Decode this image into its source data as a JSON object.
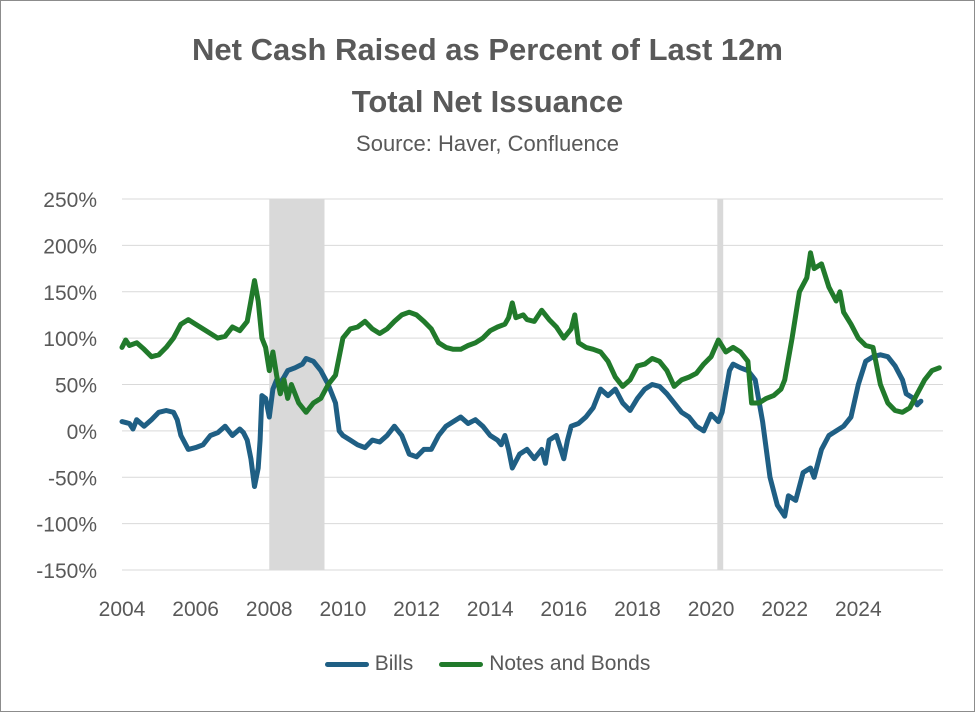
{
  "chart_data": {
    "type": "line",
    "title_line1": "Net Cash Raised as Percent of Last 12m",
    "title_line2": "Total Net Issuance",
    "subtitle": "Source: Haver, Confluence",
    "ylim": [
      -150,
      250
    ],
    "xlim": [
      2004.0,
      2025.0
    ],
    "y_ticks": [
      -150,
      -100,
      -50,
      0,
      50,
      100,
      150,
      200,
      250
    ],
    "y_tick_labels": [
      "-150%",
      "-100%",
      "-50%",
      "0%",
      "50%",
      "100%",
      "150%",
      "200%",
      "250%"
    ],
    "x_ticks": [
      2004,
      2006,
      2008,
      2010,
      2012,
      2014,
      2016,
      2018,
      2020,
      2022,
      2024
    ],
    "x_tick_labels": [
      "2004",
      "2006",
      "2008",
      "2010",
      "2012",
      "2014",
      "2016",
      "2018",
      "2020",
      "2022",
      "2024"
    ],
    "grid": true,
    "legend_position": "bottom",
    "recession_shading": [
      [
        2008.0,
        2009.5
      ],
      [
        2020.17,
        2020.33
      ]
    ],
    "series": [
      {
        "name": "Bills",
        "color": "#1f5f84",
        "points": [
          [
            2004.0,
            10
          ],
          [
            2004.2,
            8
          ],
          [
            2004.3,
            2
          ],
          [
            2004.4,
            12
          ],
          [
            2004.6,
            5
          ],
          [
            2004.8,
            12
          ],
          [
            2005.0,
            20
          ],
          [
            2005.2,
            22
          ],
          [
            2005.4,
            20
          ],
          [
            2005.5,
            12
          ],
          [
            2005.6,
            -5
          ],
          [
            2005.8,
            -20
          ],
          [
            2006.0,
            -18
          ],
          [
            2006.2,
            -15
          ],
          [
            2006.4,
            -5
          ],
          [
            2006.6,
            -2
          ],
          [
            2006.8,
            5
          ],
          [
            2007.0,
            -5
          ],
          [
            2007.2,
            2
          ],
          [
            2007.3,
            -2
          ],
          [
            2007.4,
            -10
          ],
          [
            2007.5,
            -30
          ],
          [
            2007.6,
            -60
          ],
          [
            2007.7,
            -40
          ],
          [
            2007.75,
            -10
          ],
          [
            2007.8,
            38
          ],
          [
            2007.9,
            35
          ],
          [
            2008.0,
            15
          ],
          [
            2008.1,
            45
          ],
          [
            2008.2,
            55
          ],
          [
            2008.3,
            52
          ],
          [
            2008.4,
            58
          ],
          [
            2008.5,
            65
          ],
          [
            2008.7,
            68
          ],
          [
            2008.9,
            72
          ],
          [
            2009.0,
            78
          ],
          [
            2009.2,
            75
          ],
          [
            2009.4,
            65
          ],
          [
            2009.6,
            50
          ],
          [
            2009.8,
            30
          ],
          [
            2009.9,
            0
          ],
          [
            2010.0,
            -5
          ],
          [
            2010.2,
            -10
          ],
          [
            2010.4,
            -15
          ],
          [
            2010.6,
            -18
          ],
          [
            2010.8,
            -10
          ],
          [
            2011.0,
            -12
          ],
          [
            2011.2,
            -5
          ],
          [
            2011.4,
            5
          ],
          [
            2011.6,
            -5
          ],
          [
            2011.8,
            -25
          ],
          [
            2012.0,
            -28
          ],
          [
            2012.2,
            -20
          ],
          [
            2012.4,
            -20
          ],
          [
            2012.6,
            -5
          ],
          [
            2012.8,
            5
          ],
          [
            2013.0,
            10
          ],
          [
            2013.2,
            15
          ],
          [
            2013.4,
            8
          ],
          [
            2013.6,
            12
          ],
          [
            2013.8,
            5
          ],
          [
            2014.0,
            -5
          ],
          [
            2014.2,
            -10
          ],
          [
            2014.3,
            -15
          ],
          [
            2014.4,
            -5
          ],
          [
            2014.5,
            -20
          ],
          [
            2014.6,
            -40
          ],
          [
            2014.8,
            -25
          ],
          [
            2015.0,
            -20
          ],
          [
            2015.2,
            -30
          ],
          [
            2015.4,
            -20
          ],
          [
            2015.5,
            -35
          ],
          [
            2015.6,
            -10
          ],
          [
            2015.8,
            -5
          ],
          [
            2016.0,
            -30
          ],
          [
            2016.1,
            -10
          ],
          [
            2016.2,
            5
          ],
          [
            2016.4,
            8
          ],
          [
            2016.6,
            15
          ],
          [
            2016.8,
            25
          ],
          [
            2017.0,
            45
          ],
          [
            2017.2,
            38
          ],
          [
            2017.4,
            45
          ],
          [
            2017.6,
            30
          ],
          [
            2017.8,
            22
          ],
          [
            2018.0,
            35
          ],
          [
            2018.2,
            45
          ],
          [
            2018.4,
            50
          ],
          [
            2018.6,
            48
          ],
          [
            2018.8,
            40
          ],
          [
            2019.0,
            30
          ],
          [
            2019.2,
            20
          ],
          [
            2019.4,
            15
          ],
          [
            2019.6,
            5
          ],
          [
            2019.8,
            0
          ],
          [
            2020.0,
            18
          ],
          [
            2020.2,
            10
          ],
          [
            2020.3,
            20
          ],
          [
            2020.5,
            65
          ],
          [
            2020.6,
            72
          ],
          [
            2020.8,
            68
          ],
          [
            2021.0,
            65
          ],
          [
            2021.2,
            55
          ],
          [
            2021.4,
            10
          ],
          [
            2021.6,
            -50
          ],
          [
            2021.8,
            -80
          ],
          [
            2022.0,
            -92
          ],
          [
            2022.1,
            -70
          ],
          [
            2022.3,
            -75
          ],
          [
            2022.5,
            -45
          ],
          [
            2022.7,
            -40
          ],
          [
            2022.8,
            -50
          ],
          [
            2023.0,
            -20
          ],
          [
            2023.2,
            -5
          ],
          [
            2023.4,
            0
          ],
          [
            2023.6,
            5
          ],
          [
            2023.8,
            15
          ],
          [
            2024.0,
            50
          ],
          [
            2024.2,
            75
          ],
          [
            2024.4,
            80
          ],
          [
            2024.6,
            82
          ],
          [
            2024.8,
            80
          ],
          [
            2025.0,
            70
          ],
          [
            2025.2,
            55
          ],
          [
            2025.3,
            40
          ],
          [
            2025.5,
            35
          ],
          [
            2025.6,
            28
          ],
          [
            2025.7,
            32
          ]
        ]
      },
      {
        "name": "Notes and Bonds",
        "color": "#217a2b",
        "points": [
          [
            2004.0,
            90
          ],
          [
            2004.1,
            98
          ],
          [
            2004.2,
            92
          ],
          [
            2004.4,
            95
          ],
          [
            2004.6,
            88
          ],
          [
            2004.8,
            80
          ],
          [
            2005.0,
            82
          ],
          [
            2005.2,
            90
          ],
          [
            2005.4,
            100
          ],
          [
            2005.6,
            115
          ],
          [
            2005.8,
            120
          ],
          [
            2006.0,
            115
          ],
          [
            2006.2,
            110
          ],
          [
            2006.4,
            105
          ],
          [
            2006.6,
            100
          ],
          [
            2006.8,
            102
          ],
          [
            2007.0,
            112
          ],
          [
            2007.2,
            108
          ],
          [
            2007.4,
            118
          ],
          [
            2007.5,
            140
          ],
          [
            2007.6,
            162
          ],
          [
            2007.7,
            140
          ],
          [
            2007.8,
            100
          ],
          [
            2007.9,
            90
          ],
          [
            2008.0,
            65
          ],
          [
            2008.1,
            85
          ],
          [
            2008.2,
            60
          ],
          [
            2008.3,
            40
          ],
          [
            2008.4,
            55
          ],
          [
            2008.5,
            35
          ],
          [
            2008.6,
            50
          ],
          [
            2008.8,
            30
          ],
          [
            2009.0,
            20
          ],
          [
            2009.2,
            30
          ],
          [
            2009.4,
            35
          ],
          [
            2009.6,
            50
          ],
          [
            2009.8,
            60
          ],
          [
            2010.0,
            100
          ],
          [
            2010.2,
            110
          ],
          [
            2010.4,
            112
          ],
          [
            2010.6,
            118
          ],
          [
            2010.8,
            110
          ],
          [
            2011.0,
            105
          ],
          [
            2011.2,
            110
          ],
          [
            2011.4,
            118
          ],
          [
            2011.6,
            125
          ],
          [
            2011.8,
            128
          ],
          [
            2012.0,
            125
          ],
          [
            2012.2,
            118
          ],
          [
            2012.4,
            110
          ],
          [
            2012.6,
            95
          ],
          [
            2012.8,
            90
          ],
          [
            2013.0,
            88
          ],
          [
            2013.2,
            88
          ],
          [
            2013.4,
            92
          ],
          [
            2013.6,
            95
          ],
          [
            2013.8,
            100
          ],
          [
            2014.0,
            108
          ],
          [
            2014.2,
            112
          ],
          [
            2014.4,
            115
          ],
          [
            2014.5,
            122
          ],
          [
            2014.6,
            138
          ],
          [
            2014.7,
            122
          ],
          [
            2014.9,
            125
          ],
          [
            2015.0,
            120
          ],
          [
            2015.2,
            118
          ],
          [
            2015.4,
            130
          ],
          [
            2015.6,
            120
          ],
          [
            2015.8,
            112
          ],
          [
            2016.0,
            100
          ],
          [
            2016.2,
            110
          ],
          [
            2016.3,
            125
          ],
          [
            2016.4,
            95
          ],
          [
            2016.6,
            90
          ],
          [
            2016.8,
            88
          ],
          [
            2017.0,
            85
          ],
          [
            2017.2,
            75
          ],
          [
            2017.4,
            58
          ],
          [
            2017.6,
            48
          ],
          [
            2017.8,
            55
          ],
          [
            2018.0,
            70
          ],
          [
            2018.2,
            72
          ],
          [
            2018.4,
            78
          ],
          [
            2018.6,
            75
          ],
          [
            2018.8,
            65
          ],
          [
            2019.0,
            48
          ],
          [
            2019.2,
            55
          ],
          [
            2019.4,
            58
          ],
          [
            2019.6,
            62
          ],
          [
            2019.8,
            72
          ],
          [
            2020.0,
            80
          ],
          [
            2020.2,
            98
          ],
          [
            2020.4,
            85
          ],
          [
            2020.6,
            90
          ],
          [
            2020.8,
            85
          ],
          [
            2021.0,
            75
          ],
          [
            2021.1,
            30
          ],
          [
            2021.3,
            30
          ],
          [
            2021.5,
            35
          ],
          [
            2021.7,
            38
          ],
          [
            2021.9,
            45
          ],
          [
            2022.0,
            55
          ],
          [
            2022.2,
            100
          ],
          [
            2022.4,
            150
          ],
          [
            2022.6,
            165
          ],
          [
            2022.7,
            192
          ],
          [
            2022.8,
            175
          ],
          [
            2023.0,
            180
          ],
          [
            2023.2,
            155
          ],
          [
            2023.4,
            140
          ],
          [
            2023.5,
            150
          ],
          [
            2023.6,
            128
          ],
          [
            2023.8,
            115
          ],
          [
            2024.0,
            100
          ],
          [
            2024.2,
            92
          ],
          [
            2024.4,
            90
          ],
          [
            2024.6,
            50
          ],
          [
            2024.8,
            30
          ],
          [
            2025.0,
            22
          ],
          [
            2025.2,
            20
          ],
          [
            2025.4,
            25
          ],
          [
            2025.6,
            40
          ],
          [
            2025.8,
            55
          ],
          [
            2026.0,
            65
          ],
          [
            2026.2,
            68
          ]
        ]
      }
    ]
  }
}
